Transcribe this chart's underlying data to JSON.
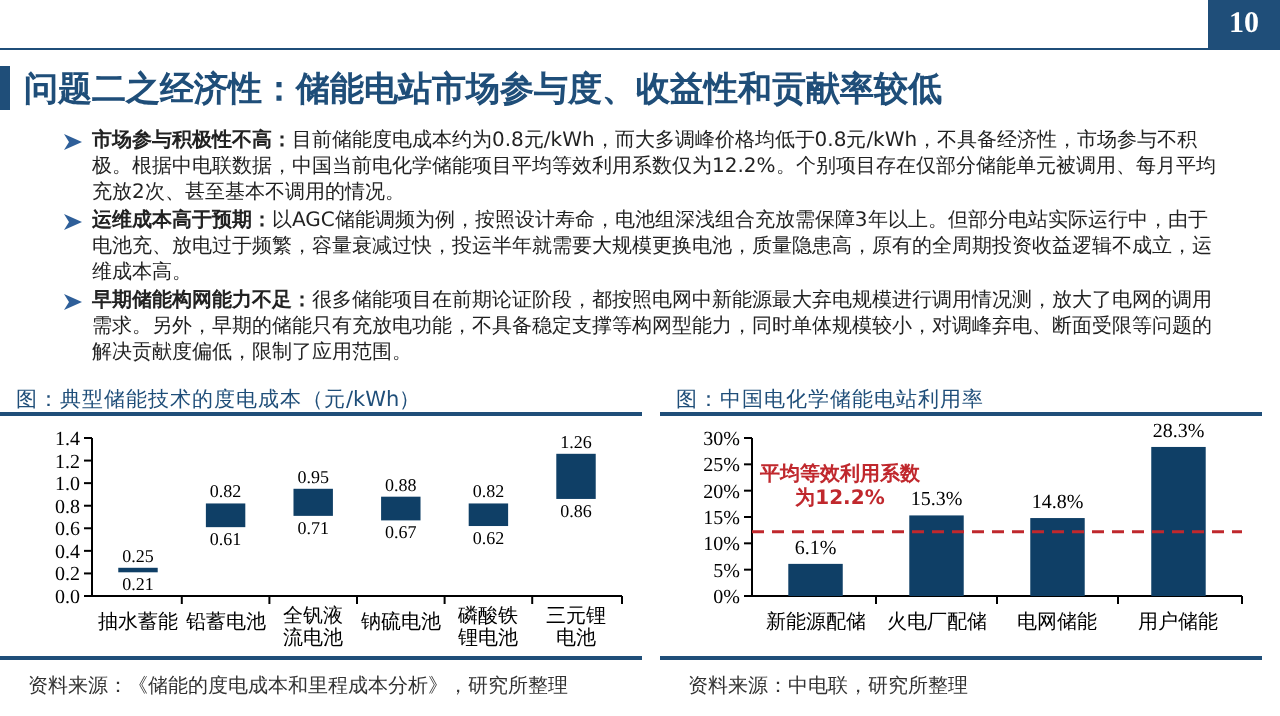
{
  "chart_data": [
    {
      "type": "other",
      "title": "问题二之经济性：储能电站市场参与度、收益性和贡献率较低",
      "annotations": [
        "10",
        "市场参与积极性不高：目前储能度电成本约为0.8元/kWh，而大多调峰价格均低于0.8元/kWh，不具备经济性，市场参与不积极。根据中电联数据，中国当前电化学储能项目平均等效利用系数仅为12.2%。个别项目存在仅部分储能单元被调用、每月平均充放2次、甚至基本不调用的情况。",
        "运维成本高于预期：以AGC储能调频为例，按照设计寿命，电池组深浅组合充放需保障3年以上。但部分电站实际运行中，由于电池充、放电过于频繁，容量衰减过快，投运半年就需要大规模更换电池，质量隐患高，原有的全周期投资收益逻辑不成立，运维成本高。",
        "早期储能构网能力不足：很多储能项目在前期论证阶段，都按照电网中新能源最大弃电规模进行调用情况测，放大了电网的调用需求。另外，早期的储能只有充放电功能，不具备稳定支撑等构网型能力，同时单体规模较小，对调峰弃电、断面受限等问题的解决贡献度偏低，限制了应用范围。"
      ]
    },
    {
      "type": "bar",
      "title": "图：典型储能技术的度电成本（元/kWh）",
      "categories": [
        "抽水蓄能",
        "铅蓄电池",
        "全钒液流电池",
        "钠硫电池",
        "磷酸铁锂电池",
        "三元锂电池"
      ],
      "base": [
        0.21,
        0.61,
        0.71,
        0.67,
        0.62,
        0.86
      ],
      "values": [
        0.04,
        0.21,
        0.24,
        0.21,
        0.2,
        0.4
      ],
      "color": "#0f3f66",
      "ylim": [
        0,
        1.4
      ],
      "yticks": [
        {
          "value": 0,
          "label": "0.0"
        },
        0.2,
        0.4,
        0.6,
        0.8,
        {
          "value": 1,
          "label": "1.0"
        },
        1.2,
        1.4
      ],
      "annotations": [
        {
          "text": "0.25",
          "x": "抽水蓄能",
          "y": 0.25
        },
        {
          "text": "0.21",
          "x": "抽水蓄能",
          "y": 0.21
        },
        {
          "text": "0.82",
          "x": "铅蓄电池",
          "y": 0.82
        },
        {
          "text": "0.61",
          "x": "铅蓄电池",
          "y": 0.61
        },
        {
          "text": "0.95",
          "x": "全钒液流电池",
          "y": 0.95
        },
        {
          "text": "0.71",
          "x": "全钒液流电池",
          "y": 0.71
        },
        {
          "text": "0.88",
          "x": "钠硫电池",
          "y": 0.88
        },
        {
          "text": "0.67",
          "x": "钠硫电池",
          "y": 0.67
        },
        {
          "text": "0.82",
          "x": "磷酸铁锂电池",
          "y": 0.82
        },
        {
          "text": "0.62",
          "x": "磷酸铁锂电池",
          "y": 0.62
        },
        {
          "text": "1.26",
          "x": "三元锂电池",
          "y": 1.26
        },
        {
          "text": "0.86",
          "x": "三元锂电池",
          "y": 0.86
        },
        "资料来源：《储能的度电成本和里程成本分析》，研究所整理"
      ]
    },
    {
      "type": "bar",
      "title": "图：中国电化学储能电站利用率",
      "categories": [
        "新能源配储",
        "火电厂配储",
        "电网储能",
        "用户储能"
      ],
      "values": [
        6.1,
        15.3,
        14.8,
        28.3
      ],
      "color": "#0f3f66",
      "value_labels": [
        "6.1%",
        "15.3%",
        "14.8%",
        "28.3%"
      ],
      "ylim": [
        0,
        30
      ],
      "yticks": [
        {
          "value": 0,
          "label": "0%"
        },
        {
          "value": 5,
          "label": "5%"
        },
        {
          "value": 10,
          "label": "10%"
        },
        {
          "value": 15,
          "label": "15%"
        },
        {
          "value": 20,
          "label": "20%"
        },
        {
          "value": 25,
          "label": "25%"
        },
        {
          "value": 30,
          "label": "30%"
        }
      ],
      "ref_lines": [
        {
          "axis": "y",
          "value": 12.2,
          "label": "平均等效利用系数为12.2%",
          "color": "#c0282d",
          "line_style": "dashed"
        }
      ],
      "annotations": [
        "资料来源：中电联，研究所整理"
      ]
    }
  ]
}
